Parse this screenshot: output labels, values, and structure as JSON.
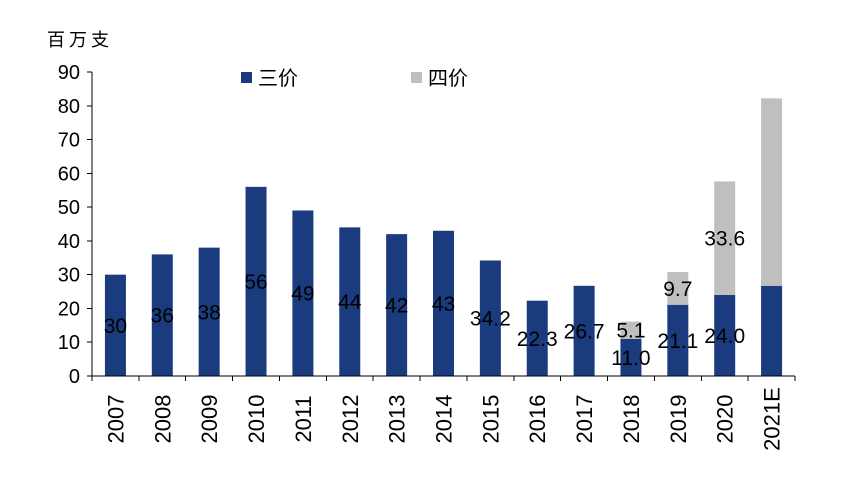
{
  "chart_data": {
    "type": "bar",
    "stacked": true,
    "ylabel": "百万支",
    "categories": [
      "2007",
      "2008",
      "2009",
      "2010",
      "2011",
      "2012",
      "2013",
      "2014",
      "2015",
      "2016",
      "2017",
      "2018",
      "2019",
      "2020",
      "2021E"
    ],
    "series": [
      {
        "name": "三价",
        "color": "#1B3B7F",
        "values": [
          30,
          36,
          38,
          56,
          49,
          44,
          42,
          43,
          34.2,
          22.3,
          26.7,
          11.0,
          21.1,
          24.0,
          26.7
        ],
        "labels": [
          "30",
          "36",
          "38",
          "56",
          "49",
          "44",
          "42",
          "43",
          "34.2",
          "22.3",
          "26.7",
          "11.0",
          "21.1",
          "24.0",
          null
        ]
      },
      {
        "name": "四价",
        "color": "#BFBFBF",
        "values": [
          null,
          null,
          null,
          null,
          null,
          null,
          null,
          null,
          null,
          null,
          null,
          5.1,
          9.7,
          33.6,
          55.5
        ],
        "labels": [
          null,
          null,
          null,
          null,
          null,
          null,
          null,
          null,
          null,
          null,
          null,
          "5.1",
          "9.7",
          "33.6",
          null
        ]
      }
    ],
    "ylim": [
      0,
      90
    ],
    "yticks": [
      0,
      10,
      20,
      30,
      40,
      50,
      60,
      70,
      80,
      90
    ],
    "legend_position": "top",
    "grid": false
  }
}
